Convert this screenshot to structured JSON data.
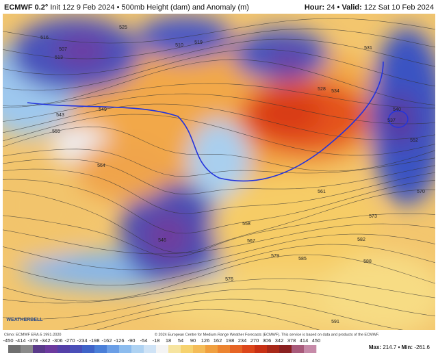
{
  "header": {
    "model": "ECMWF 0.2°",
    "init": "Init 12z 9 Feb 2024 • 500mb Height (dam) and Anomaly (m)",
    "hour_label": "Hour:",
    "hour": "24",
    "valid_label": "• Valid:",
    "valid": "12z Sat 10 Feb 2024"
  },
  "map": {
    "logo": "WEATHERBELL",
    "contour_labels": [
      516,
      507,
      513,
      525,
      510,
      519,
      543,
      549,
      555,
      564,
      546,
      540,
      537,
      552,
      570,
      573,
      582,
      588,
      591,
      561,
      558,
      567,
      579,
      585,
      576,
      528,
      534,
      531
    ]
  },
  "footer": {
    "climo": "Climo: ECMWF ERA-5 1991-2020",
    "copyright": "© 2024 European Centre for Medium-Range Weather Forecasts (ECMWF). This service is based on data and products of the ECMWF.",
    "max_label": "Max:",
    "max": 214.7,
    "min_label": "• Min:",
    "min": -261.6
  },
  "colorbar": {
    "labels": [
      -450,
      -414,
      -378,
      -342,
      -306,
      -270,
      -234,
      -198,
      -162,
      -126,
      -90,
      -54,
      -18,
      18,
      54,
      90,
      126,
      162,
      198,
      234,
      270,
      306,
      342,
      378,
      414,
      450
    ]
  }
}
